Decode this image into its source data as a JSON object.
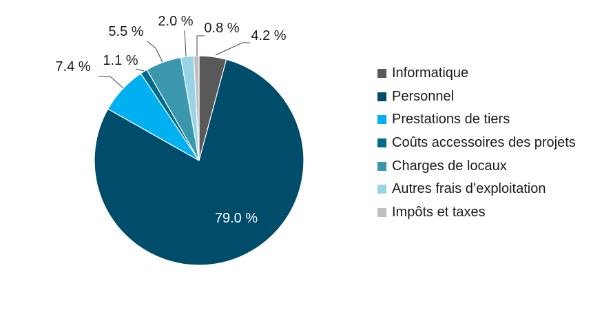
{
  "chart_data": {
    "type": "pie",
    "title": "",
    "slices": [
      {
        "name": "Informatique",
        "value": 4.2,
        "label": "4.2 %",
        "color": "#595959"
      },
      {
        "name": "Personnel",
        "value": 79.0,
        "label": "79.0 %",
        "color": "#004d6b"
      },
      {
        "name": "Prestations de tiers",
        "value": 7.4,
        "label": "7.4 %",
        "color": "#00b0f0"
      },
      {
        "name": "Coûts accessoires des projets",
        "value": 1.1,
        "label": "1.1 %",
        "color": "#006b8a"
      },
      {
        "name": "Charges de locaux",
        "value": 5.5,
        "label": "5.5 %",
        "color": "#3a97ad"
      },
      {
        "name": "Autres frais d’exploitation",
        "value": 2.0,
        "label": "2.0 %",
        "color": "#99d4e6"
      },
      {
        "name": "Impôts et taxes",
        "value": 0.8,
        "label": "0.8 %",
        "color": "#bfbfbf"
      }
    ],
    "legend_position": "right"
  }
}
